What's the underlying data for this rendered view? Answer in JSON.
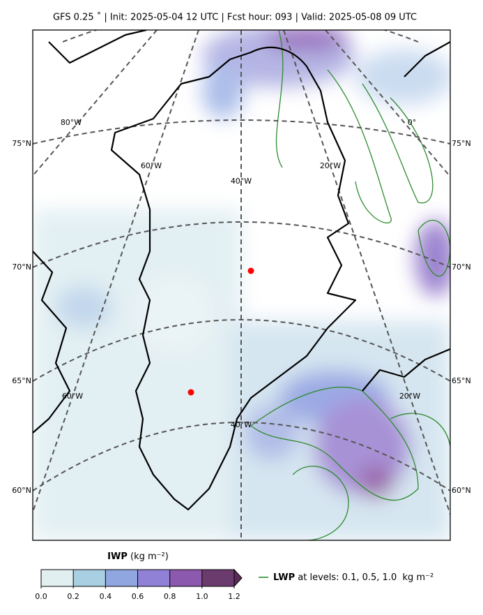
{
  "title": "GFS 0.25 ˚  |  Init: 2025-05-04 12 UTC  |  Fcst hour: 093  |  Valid: 2025-05-08 09 UTC",
  "lat_labels": [
    "75°N",
    "70°N",
    "65°N",
    "60°N"
  ],
  "lon_labels": [
    "80°W",
    "60°W",
    "40°W",
    "20°W",
    "0°",
    "60°W",
    "40°W",
    "20°W"
  ],
  "colorbar": {
    "name": "IWP",
    "unit": "(kg m⁻²)",
    "ticks": [
      {
        "value": 0,
        "label": "0.0"
      },
      0.2,
      0.4,
      0.6,
      0.8,
      {
        "value": 1,
        "label": "1.0"
      },
      1.2
    ],
    "colors": [
      "#e1eff1",
      "#a9cfe2",
      "#8fa6e0",
      "#9080d6",
      "#8b59ad",
      "#6c3b6e"
    ],
    "extend_color": "#5b2b58"
  },
  "legend": {
    "name": "LWP",
    "text": " at levels: 0.1, 0.5, 1.0  kg m⁻²",
    "color": "#2e8b2e"
  }
}
